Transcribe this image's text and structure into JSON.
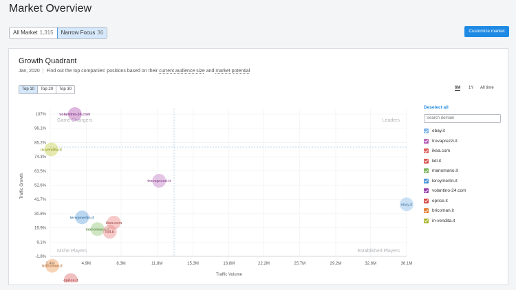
{
  "page": {
    "title": "Market Overview"
  },
  "market_toggle": {
    "all_label": "All Market",
    "all_count": "1,315",
    "narrow_label": "Narrow Focus",
    "narrow_count": "36"
  },
  "customize_label": "Customize market",
  "card": {
    "title": "Growth Quadrant",
    "date": "Jan, 2020",
    "desc_prefix": "Find out the top companies' positions based on their",
    "desc_link1": "current audience size",
    "desc_and": "and",
    "desc_link2": "market potential"
  },
  "top_buttons": [
    "Top 10",
    "Top 20",
    "Top 30"
  ],
  "periods": [
    "6M",
    "1Y",
    "All time"
  ],
  "sidebar": {
    "deselect_label": "Deselect all",
    "search_placeholder": "Search domain",
    "items": [
      {
        "label": "ebay.it",
        "color": "#7db4e8"
      },
      {
        "label": "trovaprezzi.it",
        "color": "#b65fb8"
      },
      {
        "label": "ikea.com",
        "color": "#e0605e"
      },
      {
        "label": "lidl.it",
        "color": "#d9534f"
      },
      {
        "label": "manomano.it",
        "color": "#79b55a"
      },
      {
        "label": "leroymerlin.it",
        "color": "#4a94d8"
      },
      {
        "label": "volantino-24.com",
        "color": "#9a3fb0"
      },
      {
        "label": "eprice.it",
        "color": "#d64540"
      },
      {
        "label": "bricoman.it",
        "color": "#e47e35"
      },
      {
        "label": "in-vendita.it",
        "color": "#a9b52c"
      }
    ]
  },
  "chart_data": {
    "type": "scatter",
    "xlabel": "Traffic Volume",
    "ylabel": "Traffic Growth",
    "x_ticks": [
      "1.4M",
      "4.9M",
      "8.3M",
      "11.8M",
      "15.3M",
      "18.8M",
      "22.2M",
      "25.7M",
      "29.2M",
      "32.6M",
      "36.1M"
    ],
    "y_ticks": [
      "107%",
      "96.1%",
      "85.2%",
      "74.3%",
      "63.5%",
      "52.6%",
      "41.7%",
      "30.8%",
      "19.9%",
      "9.1%",
      "-1.8%"
    ],
    "quadrants": {
      "top_left": "Game Changers",
      "top_right": "Leaders",
      "bottom_left": "Niche Players",
      "bottom_right": "Established Players"
    },
    "points": [
      {
        "label": "volantino-24.com",
        "x": 3.8,
        "y": 107,
        "color": "#b65fb8"
      },
      {
        "label": "in-vendita.it",
        "x": 1.5,
        "y": 80,
        "color": "#c8d050"
      },
      {
        "label": "trovaprezzi.it",
        "x": 12.0,
        "y": 56,
        "color": "#c47ec8"
      },
      {
        "label": "ebay.it",
        "x": 36.1,
        "y": 38,
        "color": "#8cbcea"
      },
      {
        "label": "leroymerlin.it",
        "x": 4.5,
        "y": 28,
        "color": "#6aa8e0"
      },
      {
        "label": "ikea.com",
        "x": 7.6,
        "y": 24,
        "color": "#e88a88"
      },
      {
        "label": "manomano.it",
        "x": 6.0,
        "y": 19,
        "color": "#92c878"
      },
      {
        "label": "lidl.it",
        "x": 7.2,
        "y": 17,
        "color": "#e88a88"
      },
      {
        "label": "bricoman.it",
        "x": 1.6,
        "y": -9,
        "color": "#f0a060"
      },
      {
        "label": "eprice.it",
        "x": 3.4,
        "y": -20,
        "color": "#e07070"
      }
    ],
    "grid": true
  }
}
